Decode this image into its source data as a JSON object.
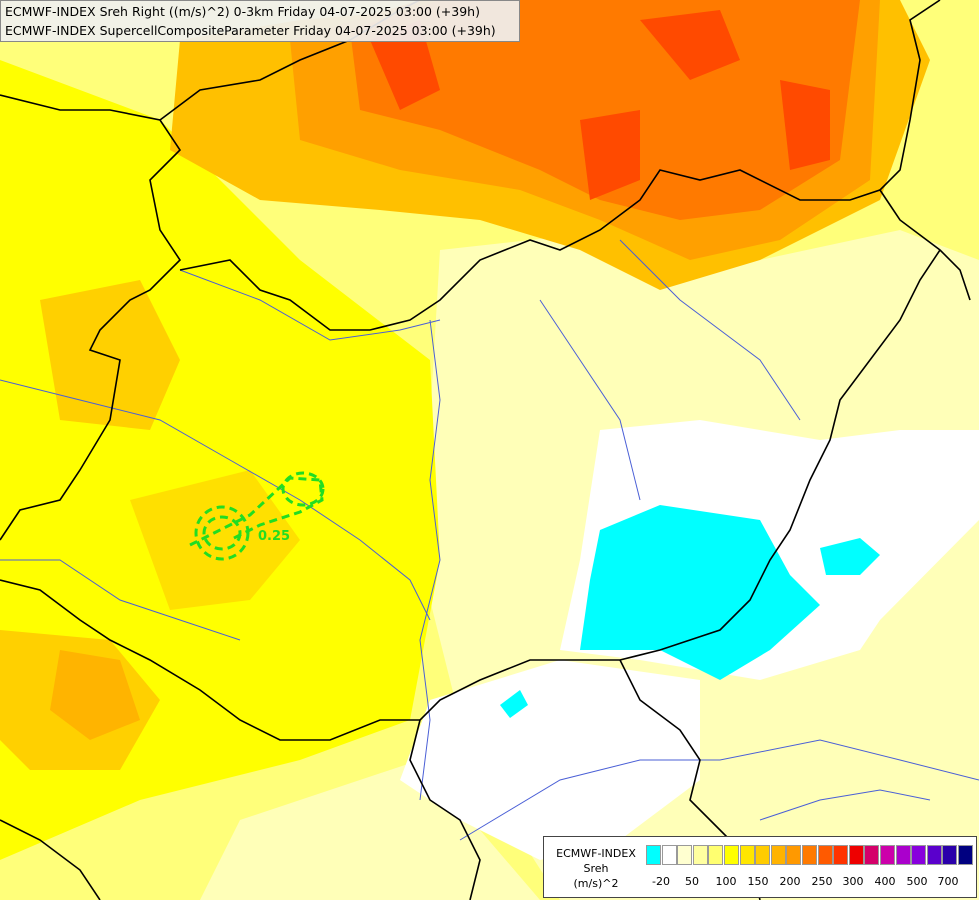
{
  "header": {
    "line1": "ECMWF-INDEX Sreh Right ((m/s)^2) 0-3km Friday 04-07-2025 03:00 (+39h)",
    "line2": "ECMWF-INDEX SupercellCompositeParameter Friday 04-07-2025 03:00 (+39h)"
  },
  "map": {
    "contour_label": "0.25",
    "fill_colors": {
      "background": "#ffff9a",
      "light_yellow": "#ffffb0",
      "yellow": "#ffff00",
      "gold": "#ffe000",
      "orange_light": "#ffc000",
      "orange": "#ffa000",
      "orange_dark": "#ff7a00",
      "red": "#ff4a00",
      "negative": "#00ffff",
      "zero": "#ffffff",
      "contour_green": "#22dd22",
      "border": "#000000",
      "river": "#4a5fd6"
    }
  },
  "legend": {
    "title_line1": "ECMWF-INDEX",
    "title_line2": "Sreh",
    "title_line3": "(m/s)^2",
    "ticks": [
      "-20",
      "50",
      "100",
      "150",
      "200",
      "250",
      "300",
      "400",
      "500",
      "700"
    ],
    "swatch_colors": [
      "#00ffff",
      "#ffffff",
      "#ffffd0",
      "#ffffa0",
      "#ffff70",
      "#ffff00",
      "#ffe600",
      "#ffcc00",
      "#ffb300",
      "#ff9900",
      "#ff7a00",
      "#ff5a00",
      "#ff3300",
      "#ee0000",
      "#d4006a",
      "#cc00aa",
      "#aa00cc",
      "#8800dd",
      "#5a00cc",
      "#2a00aa",
      "#000080"
    ]
  }
}
